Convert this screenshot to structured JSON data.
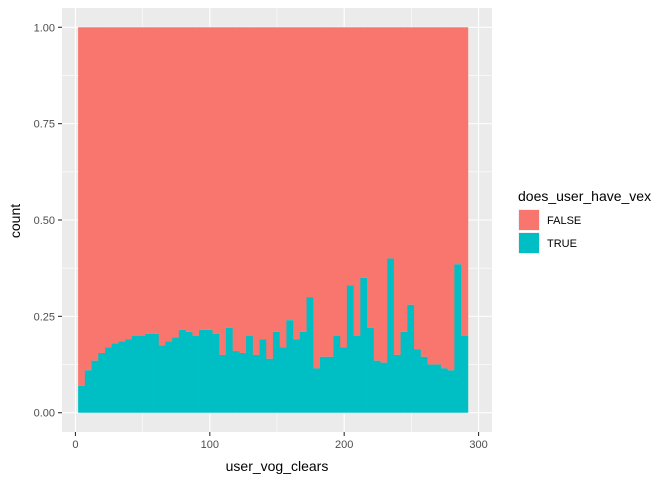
{
  "chart_data": {
    "type": "bar",
    "subtype": "stacked-histogram-proportion",
    "title": "",
    "xlabel": "user_vog_clears",
    "ylabel": "count",
    "xlim": [
      -10,
      310
    ],
    "ylim": [
      -0.05,
      1.05
    ],
    "x_ticks": [
      0,
      100,
      200,
      300
    ],
    "x_tick_labels": [
      "0",
      "100",
      "200",
      "300"
    ],
    "y_ticks": [
      0,
      0.25,
      0.5,
      0.75,
      1.0
    ],
    "y_tick_labels": [
      "0.00",
      "0.25",
      "0.50",
      "0.75",
      "1.00"
    ],
    "grid": true,
    "panel_background": "#ebebeb",
    "legend_position": "right",
    "legend_title": "does_user_have_vex",
    "bin_width": 5,
    "bin_start": 2,
    "series": [
      {
        "name": "FALSE",
        "color": "#f8766d",
        "values": [
          0.93,
          0.89,
          0.865,
          0.845,
          0.83,
          0.82,
          0.815,
          0.81,
          0.8,
          0.8,
          0.795,
          0.795,
          0.825,
          0.815,
          0.805,
          0.785,
          0.79,
          0.8,
          0.785,
          0.785,
          0.795,
          0.85,
          0.78,
          0.84,
          0.845,
          0.8,
          0.85,
          0.81,
          0.86,
          0.79,
          0.83,
          0.76,
          0.81,
          0.79,
          0.7,
          0.885,
          0.855,
          0.855,
          0.8,
          0.83,
          0.67,
          0.8,
          0.65,
          0.78,
          0.865,
          0.87,
          0.6,
          0.85,
          0.79,
          0.72,
          0.835,
          0.855,
          0.875,
          0.875,
          0.885,
          0.89,
          0.615,
          0.8
        ]
      },
      {
        "name": "TRUE",
        "color": "#00bfc4",
        "values": [
          0.07,
          0.11,
          0.135,
          0.155,
          0.17,
          0.18,
          0.185,
          0.19,
          0.2,
          0.2,
          0.205,
          0.205,
          0.175,
          0.185,
          0.195,
          0.215,
          0.21,
          0.2,
          0.215,
          0.215,
          0.205,
          0.15,
          0.22,
          0.16,
          0.155,
          0.2,
          0.15,
          0.19,
          0.14,
          0.21,
          0.17,
          0.24,
          0.19,
          0.21,
          0.3,
          0.115,
          0.145,
          0.145,
          0.2,
          0.17,
          0.33,
          0.2,
          0.35,
          0.22,
          0.135,
          0.13,
          0.4,
          0.15,
          0.21,
          0.28,
          0.165,
          0.145,
          0.125,
          0.125,
          0.115,
          0.11,
          0.385,
          0.2
        ]
      }
    ]
  }
}
